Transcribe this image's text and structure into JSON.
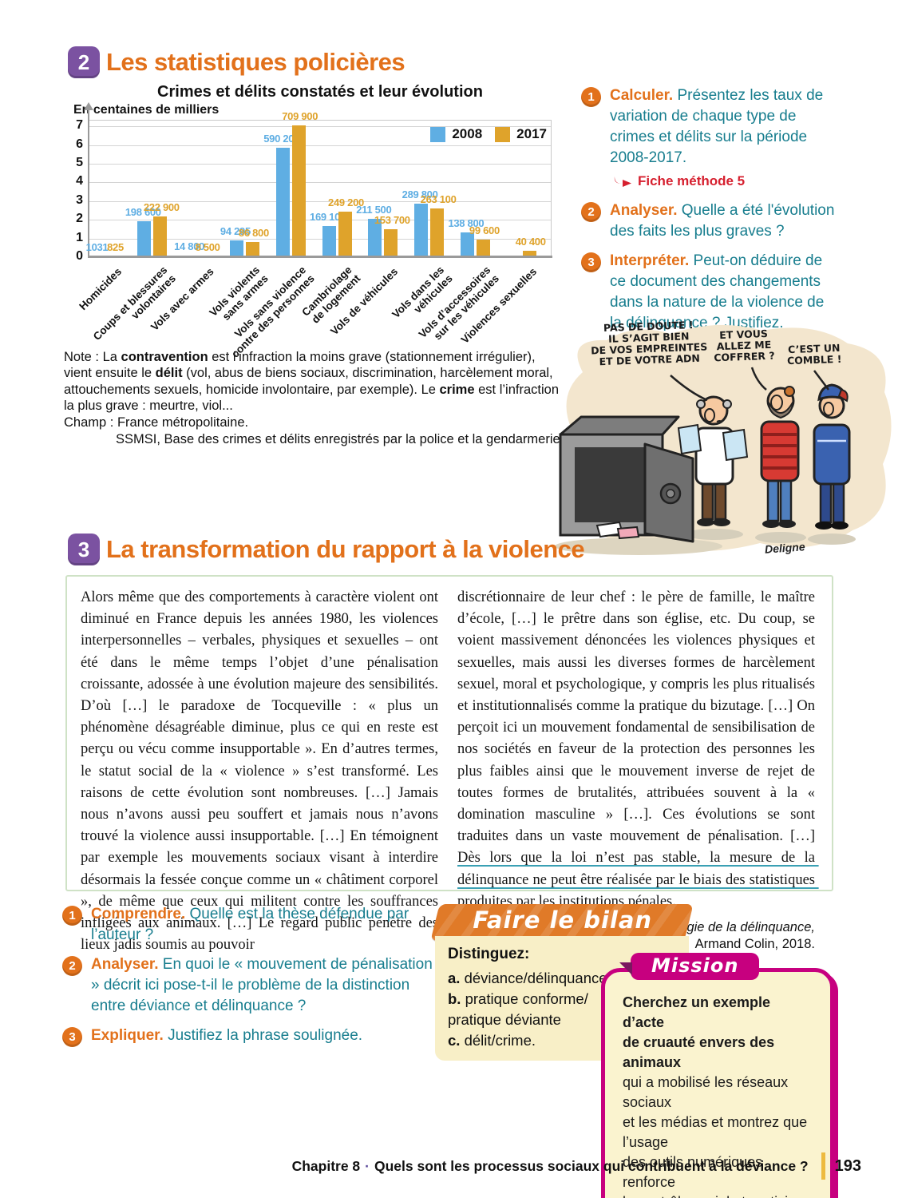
{
  "sections": {
    "doc2": {
      "number": "2",
      "title": "Les statistiques policières"
    },
    "doc3": {
      "number": "3",
      "title": "La transformation du rapport à la violence"
    }
  },
  "chart_data": {
    "type": "bar",
    "title": "Crimes et délits constatés et leur évolution",
    "unit_label": "En centaines de milliers",
    "categories": [
      "Homicides",
      "Coups et blessures\nvolontaires",
      "Vols avec armes",
      "Vols violents\nsans armes",
      "Vols sans violence\ncontre des personnes",
      "Cambriolage\nde logement",
      "Vols de véhicules",
      "Vols dans les\nvéhicules",
      "Vols d’accessoires\nsur les véhicules",
      "Violences sexuelles"
    ],
    "series": [
      {
        "name": "2008",
        "color": "#5FAEE3",
        "values": [
          0.01031,
          1.986,
          0.148,
          0.94295,
          5.902,
          1.691,
          2.115,
          2.898,
          1.388,
          null
        ],
        "labels": [
          "1031",
          "198 600",
          "14 800",
          "94 295",
          "590 200",
          "169 100",
          "211 500",
          "289 800",
          "138 800",
          ""
        ]
      },
      {
        "name": "2017",
        "color": "#DFA32B",
        "values": [
          0.00825,
          2.229,
          0.085,
          0.868,
          7.099,
          2.492,
          1.537,
          2.631,
          0.996,
          0.404
        ],
        "labels": [
          "825",
          "222 900",
          "8 500",
          "86 800",
          "709 900",
          "249 200",
          "153 700",
          "263 100",
          "99 600",
          "40 400"
        ]
      }
    ],
    "ylim": [
      0,
      7.3
    ],
    "yticks": [
      0,
      1,
      2,
      3,
      4,
      5,
      6,
      7
    ],
    "grid": true,
    "legend_position": "top-right",
    "xlabel": "",
    "ylabel": "En centaines de milliers"
  },
  "chart_note": {
    "segments": [
      {
        "t": "Note : La "
      },
      {
        "t": "contravention",
        "b": true
      },
      {
        "t": " est l’infraction la moins grave (stationnement irrégulier),\nvient ensuite le "
      },
      {
        "t": "délit",
        "b": true
      },
      {
        "t": " (vol, abus de biens sociaux, discrimination, harcèlement moral,\nattouchements sexuels, homicide involontaire, par exemple). Le "
      },
      {
        "t": "crime",
        "b": true
      },
      {
        "t": " est l’infraction\nla plus grave : meurtre, viol...\nChamp : France métropolitaine."
      }
    ],
    "source": "SSMSI, Base des crimes et délits enregistrés par la police et la gendarmerie."
  },
  "doc2_questions": [
    {
      "n": "1",
      "keyword": "Calculer.",
      "text": "Présentez les taux de variation de chaque type de crimes et délits sur la période 2008-2017.",
      "fiche": "Fiche méthode 5"
    },
    {
      "n": "2",
      "keyword": "Analyser.",
      "text": "Quelle a été l'évolution des faits les plus graves ?"
    },
    {
      "n": "3",
      "keyword": "Interpréter.",
      "text": "Peut-on déduire de ce document des changements dans la nature de la violence de la délinquance ? Justifiez."
    }
  ],
  "cartoon": {
    "bubbles": [
      {
        "text": "PAS DE DOUTE !\nIL S’AGIT BIEN\nDE VOS EMPREINTES\nET DE VOTRE ADN"
      },
      {
        "text": "ET VOUS\nALLEZ ME\nCOFFRER ?"
      },
      {
        "text": "C’EST UN\nCOMBLE !"
      }
    ],
    "signature": "Deligne"
  },
  "doc3_text": {
    "left_column": "Alors même que des comportements à caractère violent ont diminué en France depuis les années 1980, les violences interpersonnelles – verbales, physiques et sexuelles – ont été dans le même temps l’objet d’une pénalisation croissante, adossée à une évolution majeure des sensibilités. D’où […] le paradoxe de Tocqueville : « plus un phénomène désagréable diminue, plus ce qui en reste est perçu ou vécu comme insupportable ». En d’autres termes, le statut social de la « violence » s’est transformé. Les raisons de cette évolution sont nombreuses. […] Jamais nous n’avons aussi peu souffert et jamais nous n’avons trouvé la violence aussi insupportable. […] En témoignent par exemple les mouvements sociaux visant à interdire désormais la fessée conçue comme un « châtiment corporel », de même que ceux qui militent contre les souffrances infligées aux animaux. […] Le regard public pénètre des lieux jadis soumis au pouvoir",
    "right_column_segments": [
      {
        "t": "discrétionnaire de leur chef : le père de famille, le maître d’école, […] le prêtre dans son église, etc. Du coup, se voient massivement dénoncées les violences physiques et sexuelles, mais aussi les diverses formes de harcèlement sexuel, moral et psychologique, y compris les plus ritualisés et institutionnalisés comme la pratique du bizutage. […] On perçoit ici un mouvement fondamental de sensibilisation de nos sociétés en faveur de la protection des personnes les plus faibles ainsi que le mouvement inverse de rejet de toutes formes de brutalités, attribuées souvent à la « domination masculine » […]. Ces évolutions se sont traduites dans un vaste mouvement de pénalisation. […] "
      },
      {
        "t": "Dès lors que la loi n’est pas stable, la mesure de la délinquance ne peut être réalisée par le biais des statistiques produites par les institutions pénales",
        "u": true
      },
      {
        "t": "."
      }
    ],
    "source_segments": [
      {
        "t": "Laurent Mucchielli, "
      },
      {
        "t": "Sociologie de la délinquance,",
        "i": true
      },
      {
        "t": "\nArmand Colin, 2018."
      }
    ]
  },
  "doc3_questions": [
    {
      "n": "1",
      "keyword": "Comprendre.",
      "text": "Quelle est la thèse défendue par l’auteur ?"
    },
    {
      "n": "2",
      "keyword": "Analyser.",
      "text": "En quoi le « mouvement de pénalisation » décrit ici pose-t-il le problème de la distinction entre déviance et délinquance ?"
    },
    {
      "n": "3",
      "keyword": "Expliquer.",
      "text": "Justifiez la phrase soulignée."
    }
  ],
  "bilan": {
    "title": "Faire le bilan",
    "heading": "Distinguez:",
    "items": [
      {
        "label": "a.",
        "text": " déviance/délinquance"
      },
      {
        "label": "b.",
        "text": " pratique conforme/\npratique déviante"
      },
      {
        "label": "c.",
        "text": " délit/crime."
      }
    ]
  },
  "mission": {
    "title": "Mission",
    "segments": [
      {
        "t": "Cherchez un exemple d’acte\nde cruauté envers des animaux\n",
        "b": true
      },
      {
        "t": "qui a mobilisé les réseaux sociaux\net les médias et montrez que l’usage\ndes outils numériques renforce\nle contrôle social et participe\nà étendre la pénalisation."
      }
    ]
  },
  "footer": {
    "chapter": "Chapitre 8",
    "separator": "·",
    "title": "Quels sont les processus sociaux qui contribuent à la déviance ?",
    "page_number": "193"
  },
  "colors": {
    "accent_orange": "#E2711B",
    "teal_text": "#177D8E",
    "red": "#D6202F",
    "purple_badge": "#7B52A1",
    "magenta": "#C7007F",
    "bar_2008": "#5FAEE3",
    "bar_2017": "#DFA32B",
    "cream": "#F8EFC7",
    "ribbon_orange": "#E07A28"
  }
}
